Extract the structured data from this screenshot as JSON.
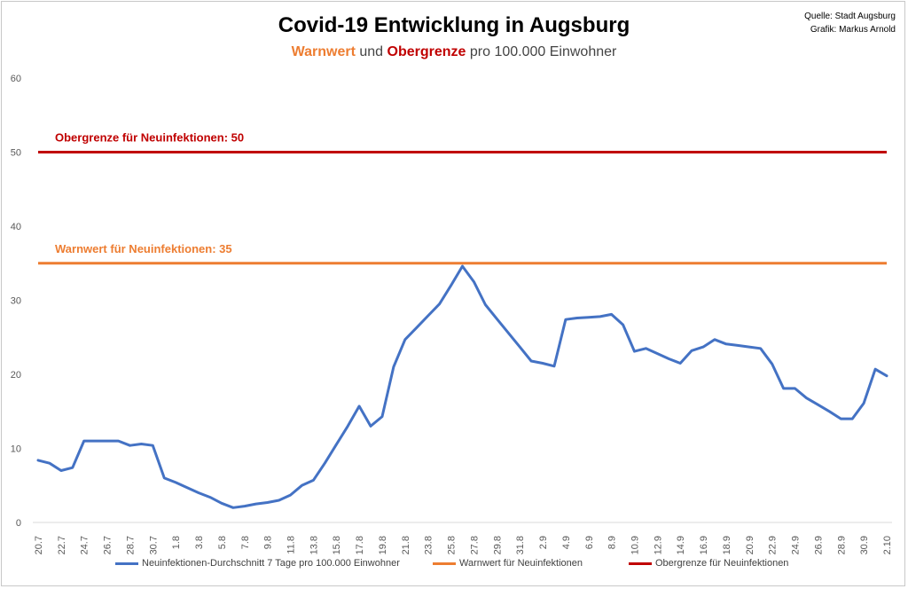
{
  "title": "Covid-19 Entwicklung in Augsburg",
  "subtitle": {
    "part1": "Warnwert",
    "part2": " und ",
    "part3": "Obergrenze",
    "part4": " pro 100.000 Einwohner"
  },
  "source": {
    "line1": "Quelle: Stadt Augsburg",
    "line2": "Grafik: Markus Arnold"
  },
  "colors": {
    "series": "#4472c4",
    "warnwert": "#ed7d31",
    "obergrenze": "#c00000"
  },
  "chart_data": {
    "type": "line",
    "title": "Covid-19 Entwicklung in Augsburg",
    "xlabel": "",
    "ylabel": "",
    "ylim": [
      0,
      60
    ],
    "yticks": [
      0,
      10,
      20,
      30,
      40,
      50,
      60
    ],
    "grid": false,
    "legend_position": "bottom",
    "x": [
      "20.7",
      "21.7",
      "22.7",
      "23.7",
      "24.7",
      "25.7",
      "26.7",
      "27.7",
      "28.7",
      "29.7",
      "30.7",
      "31.7",
      "1.8",
      "2.8",
      "3.8",
      "4.8",
      "5.8",
      "6.8",
      "7.8",
      "8.8",
      "9.8",
      "10.8",
      "11.8",
      "12.8",
      "13.8",
      "14.8",
      "15.8",
      "16.8",
      "17.8",
      "18.8",
      "19.8",
      "20.8",
      "21.8",
      "22.8",
      "23.8",
      "24.8",
      "25.8",
      "26.8",
      "27.8",
      "28.8",
      "29.8",
      "30.8",
      "31.8",
      "1.9",
      "2.9",
      "3.9",
      "4.9",
      "5.9",
      "6.9",
      "7.9",
      "8.9",
      "9.9",
      "10.9",
      "11.9",
      "12.9",
      "13.9",
      "14.9",
      "15.9",
      "16.9",
      "17.9",
      "18.9",
      "19.9",
      "20.9",
      "21.9",
      "22.9",
      "23.9",
      "24.9",
      "25.9",
      "26.9",
      "27.9",
      "28.9",
      "29.9",
      "30.9",
      "1.10",
      "2.10"
    ],
    "x_tick_labels": [
      "20.7",
      "22.7",
      "24.7",
      "26.7",
      "28.7",
      "30.7",
      "1.8",
      "3.8",
      "5.8",
      "7.8",
      "9.8",
      "11.8",
      "13.8",
      "15.8",
      "17.8",
      "19.8",
      "21.8",
      "23.8",
      "25.8",
      "27.8",
      "29.8",
      "31.8",
      "2.9",
      "4.9",
      "6.9",
      "8.9",
      "10.9",
      "12.9",
      "14.9",
      "16.9",
      "18.9",
      "20.9",
      "22.9",
      "24.9",
      "26.9",
      "28.9",
      "30.9",
      "2.10"
    ],
    "series": [
      {
        "name": "Neuinfektionen-Durchschnitt 7 Tage pro 100.000 Einwohner",
        "color": "#4472c4",
        "values": [
          8.4,
          8.0,
          7.0,
          7.4,
          11.0,
          11.0,
          11.0,
          11.0,
          10.4,
          10.6,
          10.4,
          6.0,
          5.4,
          4.7,
          4.0,
          3.4,
          2.6,
          2.0,
          2.2,
          2.5,
          2.7,
          3.0,
          3.7,
          5.0,
          5.7,
          8.0,
          10.5,
          13.0,
          15.7,
          13.0,
          14.3,
          21.0,
          24.7,
          26.3,
          27.9,
          29.5,
          32.0,
          34.6,
          32.5,
          29.4,
          27.5,
          25.6,
          23.7,
          21.8,
          21.5,
          21.1,
          27.4,
          27.6,
          27.7,
          27.8,
          28.1,
          26.7,
          23.1,
          23.5,
          22.8,
          22.1,
          21.5,
          23.2,
          23.7,
          24.7,
          24.1,
          23.9,
          23.7,
          23.5,
          21.4,
          18.1,
          18.1,
          16.8,
          15.9,
          15.0,
          14.0,
          14.0,
          16.1,
          20.7,
          19.8
        ]
      },
      {
        "name": "Warnwert für Neuinfektionen",
        "color": "#ed7d31",
        "constant": 35
      },
      {
        "name": "Obergrenze für Neuinfektionen",
        "color": "#c00000",
        "constant": 50
      }
    ],
    "annotations": [
      {
        "text": "Obergrenze für Neuinfektionen: 50",
        "value": 50,
        "color": "#c00000"
      },
      {
        "text": "Warnwert für Neuinfektionen: 35",
        "value": 35,
        "color": "#ed7d31"
      }
    ]
  }
}
